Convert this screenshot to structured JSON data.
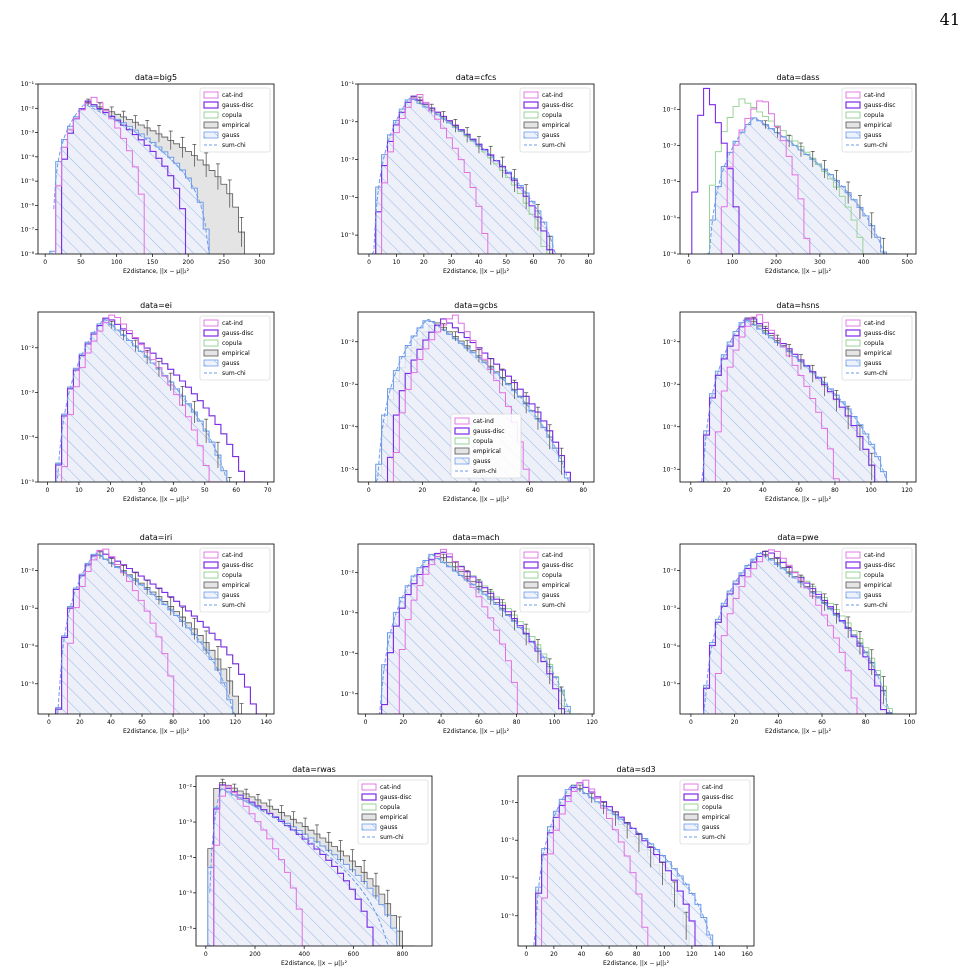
{
  "page_number": "41",
  "legend_entries": [
    "cat-ind",
    "gauss-disc",
    "copula",
    "empirical",
    "gauss",
    "sum-chi"
  ],
  "xlabel": "E2distance, ||x − μ||₂²",
  "colors": {
    "cat-ind": "#e36fe3",
    "gauss-disc": "#7d2ae8",
    "copula": "#8fcf8f",
    "empirical": "#555555",
    "gauss": "#6f9ce8",
    "sum-chi": "#6f9ce8",
    "empirical_fill": "#e4e4e4"
  },
  "chart_data": [
    {
      "type": "bar",
      "title": "data=big5",
      "xlim": [
        -10,
        320
      ],
      "xticks": [
        0,
        50,
        100,
        150,
        200,
        250,
        300
      ],
      "ylog": [
        -8,
        -1
      ],
      "legend": "top-right",
      "peaks": {
        "cat-ind": [
          70,
          0.031,
          15,
          140
        ],
        "gauss-disc": [
          60,
          0.02,
          20,
          200
        ],
        "copula": [
          60,
          0.02,
          20,
          200
        ],
        "empirical": [
          60,
          0.018,
          15,
          280
        ],
        "gauss": [
          60,
          0.016,
          10,
          230
        ],
        "sum-chi": [
          55,
          0.015,
          10,
          230
        ]
      }
    },
    {
      "type": "bar",
      "title": "data=cfcs",
      "xlim": [
        -4,
        82
      ],
      "xticks": [
        0,
        10,
        20,
        30,
        40,
        50,
        60,
        70,
        80
      ],
      "ylog": [
        -5.5,
        -1
      ],
      "legend": "top-right",
      "peaks": {
        "cat-ind": [
          18,
          0.06,
          3,
          45
        ],
        "gauss-disc": [
          16,
          0.05,
          2,
          70
        ],
        "copula": [
          16,
          0.05,
          2,
          68
        ],
        "empirical": [
          16,
          0.048,
          1,
          70
        ],
        "gauss": [
          15,
          0.045,
          1,
          72
        ],
        "sum-chi": [
          15,
          0.045,
          1,
          72
        ]
      }
    },
    {
      "type": "bar",
      "title": "data=dass",
      "xlim": [
        -20,
        520
      ],
      "xticks": [
        0,
        100,
        200,
        300,
        400,
        500
      ],
      "ylog": [
        -6,
        -1.3
      ],
      "legend": "top-right",
      "peaks": {
        "cat-ind": [
          170,
          0.022,
          70,
          280
        ],
        "gauss-disc": [
          40,
          0.04,
          10,
          120
        ],
        "copula": [
          120,
          0.02,
          40,
          420
        ],
        "empirical": [
          150,
          0.006,
          40,
          480
        ],
        "gauss": [
          150,
          0.006,
          40,
          480
        ],
        "sum-chi": [
          150,
          0.006,
          40,
          480
        ]
      }
    },
    {
      "type": "bar",
      "title": "data=ei",
      "xlim": [
        -3,
        72
      ],
      "xticks": [
        0,
        10,
        20,
        30,
        40,
        50,
        60,
        70
      ],
      "ylog": [
        -5,
        -1.2
      ],
      "legend": "top-right",
      "peaks": {
        "cat-ind": [
          21,
          0.06,
          4,
          55
        ],
        "gauss-disc": [
          19,
          0.05,
          2,
          68
        ],
        "copula": [
          19,
          0.05,
          2,
          68
        ],
        "empirical": [
          18,
          0.045,
          2,
          62
        ],
        "gauss": [
          18,
          0.045,
          2,
          62
        ],
        "sum-chi": [
          18,
          0.045,
          2,
          62
        ]
      }
    },
    {
      "type": "bar",
      "title": "data=gcbs",
      "xlim": [
        -4,
        84
      ],
      "xticks": [
        0,
        20,
        40,
        60,
        80
      ],
      "ylog": [
        -5.3,
        -1.3
      ],
      "legend": "bottom-center",
      "peaks": {
        "cat-ind": [
          32,
          0.045,
          8,
          62
        ],
        "gauss-disc": [
          28,
          0.035,
          6,
          80
        ],
        "copula": [
          28,
          0.035,
          6,
          80
        ],
        "empirical": [
          25,
          0.03,
          2,
          80
        ],
        "gauss": [
          22,
          0.035,
          2,
          80
        ],
        "sum-chi": [
          22,
          0.035,
          2,
          80
        ]
      }
    },
    {
      "type": "bar",
      "title": "data=hsns",
      "xlim": [
        -6,
        125
      ],
      "xticks": [
        0,
        20,
        40,
        60,
        80,
        100,
        120
      ],
      "ylog": [
        -5.3,
        -1.3
      ],
      "legend": "top-right",
      "peaks": {
        "cat-ind": [
          37,
          0.05,
          12,
          85
        ],
        "gauss-disc": [
          33,
          0.04,
          5,
          110
        ],
        "copula": [
          33,
          0.04,
          5,
          110
        ],
        "empirical": [
          32,
          0.038,
          5,
          110
        ],
        "gauss": [
          30,
          0.035,
          5,
          117
        ],
        "sum-chi": [
          30,
          0.035,
          5,
          117
        ]
      }
    },
    {
      "type": "bar",
      "title": "data=iri",
      "xlim": [
        -7,
        145
      ],
      "xticks": [
        0,
        20,
        40,
        60,
        80,
        100,
        120,
        140
      ],
      "ylog": [
        -5.8,
        -1.3
      ],
      "legend": "top-right",
      "peaks": {
        "cat-ind": [
          35,
          0.045,
          10,
          85
        ],
        "gauss-disc": [
          32,
          0.035,
          5,
          140
        ],
        "copula": [
          32,
          0.035,
          5,
          140
        ],
        "empirical": [
          30,
          0.03,
          5,
          130
        ],
        "gauss": [
          30,
          0.03,
          5,
          125
        ],
        "sum-chi": [
          30,
          0.03,
          5,
          125
        ]
      }
    },
    {
      "type": "bar",
      "title": "data=mach",
      "xlim": [
        -4,
        121
      ],
      "xticks": [
        0,
        20,
        40,
        60,
        80,
        100,
        120
      ],
      "ylog": [
        -5.5,
        -1.3
      ],
      "legend": "top-right",
      "peaks": {
        "cat-ind": [
          42,
          0.04,
          15,
          85
        ],
        "gauss-disc": [
          40,
          0.035,
          8,
          110
        ],
        "copula": [
          40,
          0.035,
          8,
          113
        ],
        "empirical": [
          38,
          0.03,
          6,
          112
        ],
        "gauss": [
          35,
          0.028,
          6,
          115
        ],
        "sum-chi": [
          35,
          0.028,
          6,
          115
        ]
      }
    },
    {
      "type": "bar",
      "title": "data=pwe",
      "xlim": [
        -5,
        103
      ],
      "xticks": [
        0,
        20,
        40,
        60,
        80,
        100
      ],
      "ylog": [
        -5.8,
        -1.3
      ],
      "legend": "top-right",
      "peaks": {
        "cat-ind": [
          38,
          0.04,
          10,
          78
        ],
        "gauss-disc": [
          35,
          0.035,
          5,
          92
        ],
        "copula": [
          35,
          0.035,
          5,
          95
        ],
        "empirical": [
          33,
          0.03,
          5,
          95
        ],
        "gauss": [
          32,
          0.03,
          5,
          95
        ],
        "sum-chi": [
          32,
          0.03,
          5,
          95
        ]
      }
    },
    {
      "type": "bar",
      "title": "data=rwas",
      "xlim": [
        -40,
        920
      ],
      "xticks": [
        0,
        200,
        400,
        600,
        800
      ],
      "ylog": [
        -6.5,
        -1.7
      ],
      "legend": "top-right",
      "peaks": {
        "cat-ind": [
          80,
          0.013,
          30,
          420
        ],
        "gauss-disc": [
          60,
          0.012,
          20,
          720
        ],
        "copula": [
          60,
          0.012,
          20,
          720
        ],
        "empirical": [
          50,
          0.015,
          10,
          840
        ],
        "gauss": [
          60,
          0.009,
          10,
          830
        ],
        "sum-chi": [
          60,
          0.009,
          10,
          780
        ]
      }
    },
    {
      "type": "bar",
      "title": "data=sd3",
      "xlim": [
        -6,
        165
      ],
      "xticks": [
        0,
        20,
        40,
        60,
        80,
        100,
        120,
        140,
        160
      ],
      "ylog": [
        -5.8,
        -1.3
      ],
      "legend": "top-right",
      "peaks": {
        "cat-ind": [
          42,
          0.045,
          10,
          90
        ],
        "gauss-disc": [
          38,
          0.035,
          5,
          130
        ],
        "copula": [
          38,
          0.035,
          5,
          130
        ],
        "empirical": [
          35,
          0.03,
          5,
          125
        ],
        "gauss": [
          33,
          0.03,
          5,
          142
        ],
        "sum-chi": [
          33,
          0.03,
          5,
          142
        ]
      }
    }
  ]
}
